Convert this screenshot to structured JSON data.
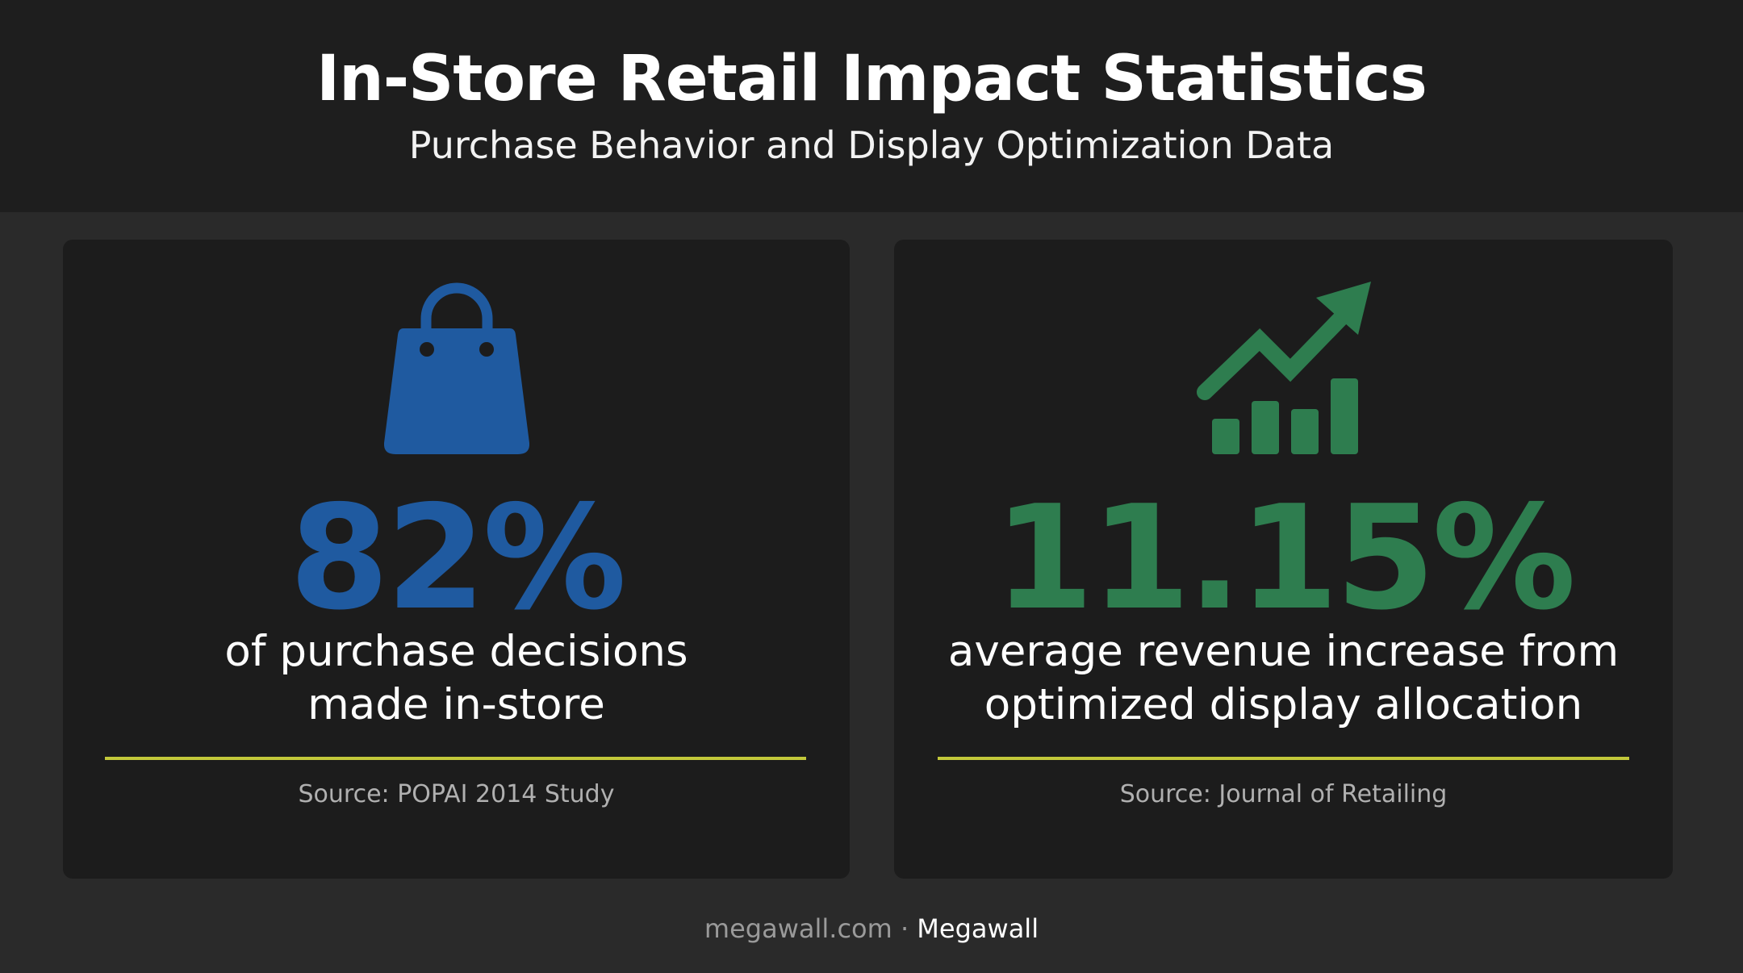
{
  "header": {
    "title": "In-Store Retail Impact Statistics",
    "subtitle": "Purchase Behavior and Display Optimization Data"
  },
  "cards": [
    {
      "icon": "shopping-bag-icon",
      "stat": "82%",
      "desc_line1": "of purchase decisions",
      "desc_line2": "made in-store",
      "source": "Source: POPAI 2014 Study",
      "accent_color": "#1f5aa0"
    },
    {
      "icon": "growth-chart-icon",
      "stat": "11.15%",
      "desc_line1": "average revenue increase from",
      "desc_line2": "optimized display allocation",
      "source": "Source: Journal of Retailing",
      "accent_color": "#2e7d4f"
    }
  ],
  "divider_color": "#c2c83a",
  "footer": {
    "site": "megawall.com",
    "separator": " · ",
    "brand": "Megawall"
  }
}
